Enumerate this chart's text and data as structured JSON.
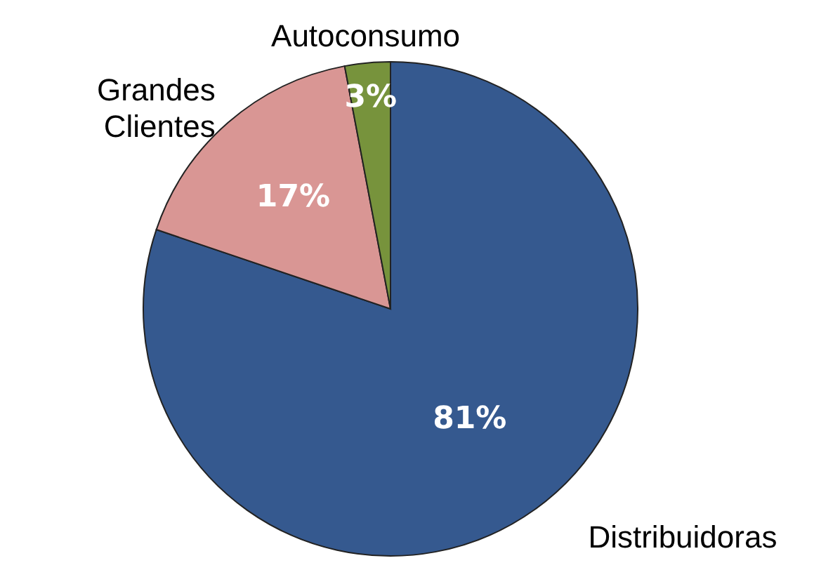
{
  "chart_data": {
    "type": "pie",
    "categories": [
      "Distribuidoras",
      "Grandes Clientes",
      "Autoconsumo"
    ],
    "values": [
      81,
      17,
      3
    ],
    "colors": [
      "#35598f",
      "#d99694",
      "#77933c"
    ],
    "value_labels": [
      "81%",
      "17%",
      "3%"
    ]
  }
}
